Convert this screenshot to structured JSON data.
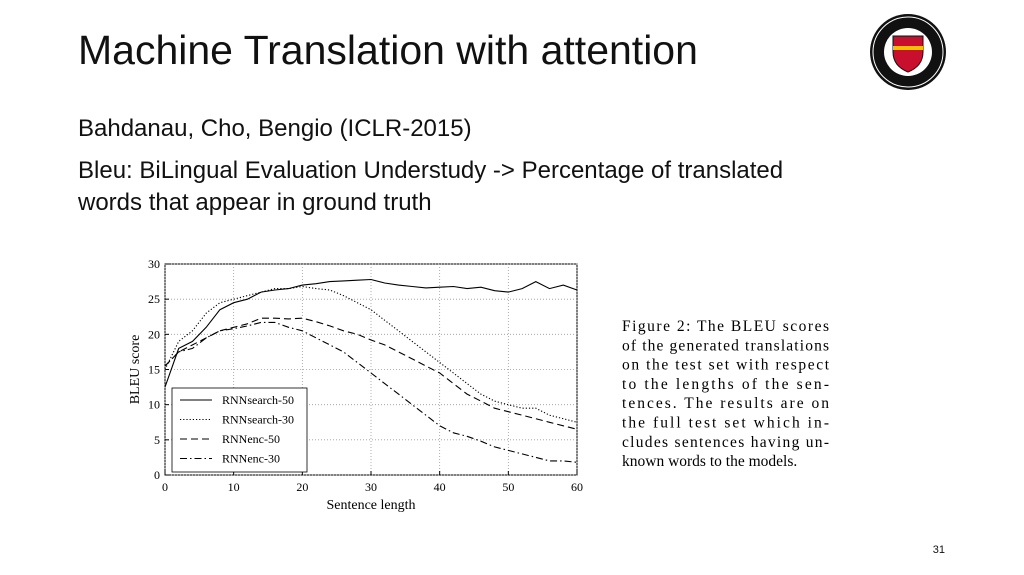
{
  "slide": {
    "title": "Machine Translation with attention",
    "lines": [
      "Bahdanau, Cho, Bengio (ICLR-2015)",
      "Bleu: BiLingual Evaluation Understudy -> Percentage of translated",
      "words that appear in ground truth"
    ],
    "caption": [
      "Figure 2:   The BLEU scores",
      "of the generated translations",
      "on the test set with respect",
      "to the lengths of the sen-",
      "tences.  The results are on",
      "the full test set which in-",
      "cludes sentences having un-",
      "known words to the models."
    ],
    "page_number": "31"
  },
  "chart_data": {
    "type": "line",
    "xlabel": "Sentence length",
    "ylabel": "BLEU score",
    "x": [
      0,
      2,
      4,
      6,
      8,
      10,
      12,
      14,
      16,
      18,
      20,
      22,
      24,
      26,
      28,
      30,
      32,
      34,
      36,
      38,
      40,
      42,
      44,
      46,
      48,
      50,
      52,
      54,
      56,
      58,
      60
    ],
    "series": [
      {
        "name": "RNNsearch-50",
        "color": "#000000",
        "dash": "solid",
        "values": [
          12.5,
          18,
          19,
          21,
          23.5,
          24.5,
          25,
          26,
          26.3,
          26.5,
          27,
          27.2,
          27.5,
          27.6,
          27.7,
          27.8,
          27.3,
          27,
          26.8,
          26.6,
          26.7,
          26.8,
          26.5,
          26.7,
          26.2,
          26,
          26.5,
          27.5,
          26.5,
          27,
          26.3
        ]
      },
      {
        "name": "RNNsearch-30",
        "color": "#000000",
        "dash": "dotted",
        "values": [
          15,
          19,
          20.5,
          23,
          24.5,
          25,
          25.5,
          26,
          26.5,
          26.5,
          26.8,
          26.5,
          26.3,
          25.5,
          24.5,
          23.5,
          22,
          20.5,
          19,
          17.5,
          16,
          14.5,
          13,
          11.5,
          10.5,
          10,
          9.5,
          9.5,
          8.5,
          8,
          7.5
        ]
      },
      {
        "name": "RNNenc-50",
        "color": "#000000",
        "dash": "dashed",
        "values": [
          15.5,
          17.5,
          18.5,
          19.5,
          20.5,
          21,
          21.5,
          22.3,
          22.3,
          22.2,
          22.3,
          21.8,
          21.2,
          20.5,
          20,
          19.2,
          18.5,
          17.5,
          16.5,
          15.5,
          14.5,
          13,
          11.5,
          10.5,
          9.5,
          9,
          8.5,
          8,
          7.5,
          7,
          6.5
        ]
      },
      {
        "name": "RNNenc-30",
        "color": "#000000",
        "dash": "dashdot",
        "values": [
          15.5,
          17.5,
          18,
          19.5,
          20.5,
          20.8,
          21.2,
          21.7,
          21.7,
          21,
          20.5,
          19.5,
          18.5,
          17.5,
          16,
          14.5,
          13,
          11.5,
          10,
          8.5,
          7,
          6,
          5.5,
          4.8,
          4,
          3.5,
          3,
          2.5,
          2,
          2,
          1.8
        ]
      }
    ],
    "xlim": [
      0,
      60
    ],
    "xticks": [
      0,
      10,
      20,
      30,
      40,
      50,
      60
    ],
    "ylim": [
      0,
      30
    ],
    "yticks": [
      0,
      5,
      10,
      15,
      20,
      25,
      30
    ],
    "grid": true,
    "legend": "lower left"
  }
}
